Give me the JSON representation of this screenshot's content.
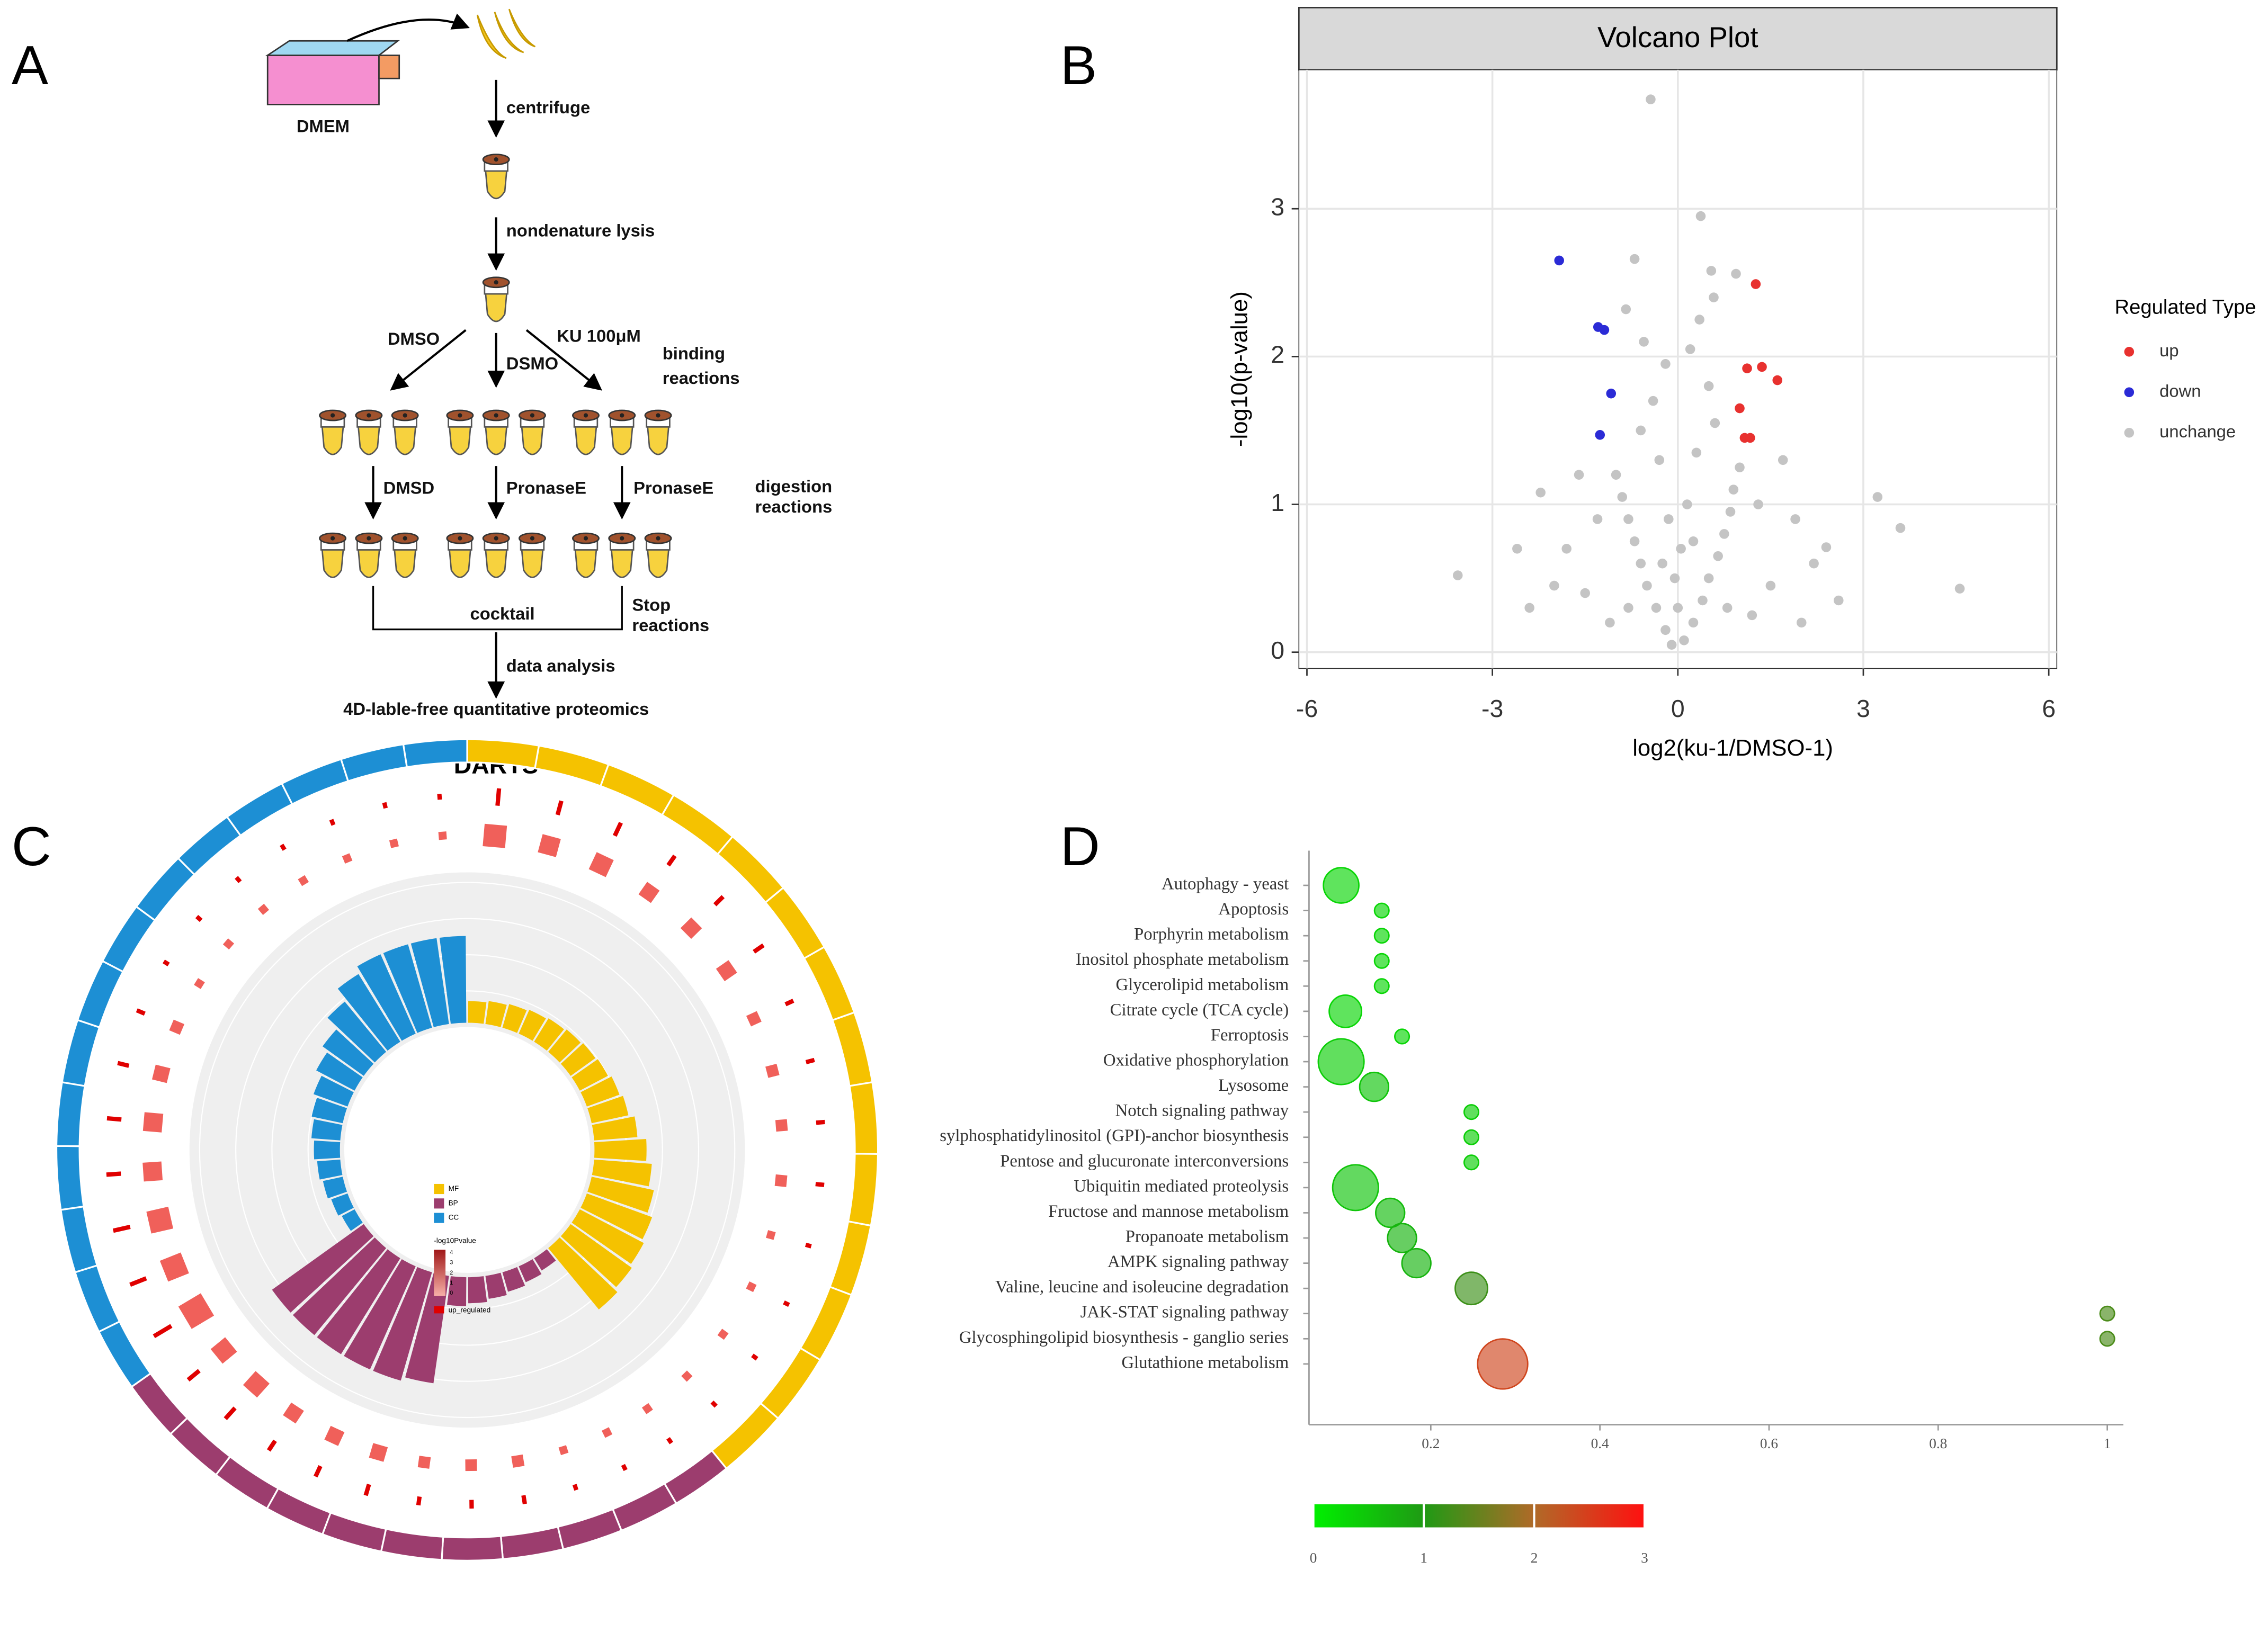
{
  "panels": [
    "A",
    "B",
    "C",
    "D"
  ],
  "diagram": {
    "labels": [
      "DMEM",
      "centrifuge",
      "nondenature lysis",
      "DMSO",
      "DSMO",
      "KU  100μM",
      "binding",
      "reactions",
      "DMSD",
      "PronaseE",
      "PronaseE",
      "digestion",
      "reactions",
      "cocktail",
      "Stop",
      "reactions",
      "data analysis",
      "4D-lable-free quantitative proteomics"
    ]
  },
  "chart_data": [
    {
      "type": "scatter",
      "title": "Volcano Plot",
      "x_label": "log2(ku-1/DMSO-1)",
      "y_label": "-log10(p-value)",
      "legend_title": "Regulated Type",
      "xlim": [
        -6.13,
        6.13
      ],
      "ylim": [
        -0.11,
        3.94
      ],
      "xticks": [
        -6,
        -3,
        0,
        3,
        6
      ],
      "yticks": [
        0,
        1,
        2,
        3
      ],
      "grid": true,
      "series": [
        {
          "name": "up",
          "color": "#e8312f",
          "x": [
            1.26,
            1.36,
            1.12,
            1.61,
            1.0,
            1.08,
            1.17
          ],
          "values": [
            2.49,
            1.93,
            1.92,
            1.84,
            1.65,
            1.45,
            1.45
          ]
        },
        {
          "name": "down",
          "color": "#2b2bd6",
          "x": [
            -1.92,
            -1.29,
            -1.19,
            -1.08,
            -1.26
          ],
          "values": [
            2.65,
            2.2,
            2.18,
            1.75,
            1.47
          ]
        },
        {
          "name": "unchange",
          "color": "#c4c4c4",
          "x": [
            -0.44,
            0.37,
            -0.7,
            0.54,
            0.94,
            0.58,
            -0.84,
            3.23,
            3.6,
            4.56,
            -3.56,
            -2.22,
            2.4,
            -0.1,
            0.1,
            -0.2,
            0.25,
            -0.35,
            0.4,
            -0.5,
            0.5,
            -0.6,
            0.65,
            -0.7,
            0.75,
            -0.8,
            0.85,
            -0.9,
            0.9,
            -1.0,
            1.0,
            -0.3,
            0.3,
            -0.6,
            0.6,
            -0.4,
            0.5,
            -0.2,
            0.2,
            -0.55,
            0.35,
            -0.05,
            0.05,
            -0.15,
            0.15,
            -1.5,
            1.5,
            -1.8,
            1.9,
            -2.0,
            2.2,
            -1.3,
            1.3,
            -2.4,
            2.6,
            -1.1,
            1.2,
            0,
            -0.25,
            0.25,
            -2.6,
            1.7,
            -1.6,
            2.0,
            -0.8,
            0.8
          ],
          "values": [
            3.74,
            2.95,
            2.66,
            2.58,
            2.56,
            2.4,
            2.32,
            1.05,
            0.84,
            0.43,
            0.52,
            1.08,
            0.71,
            0.05,
            0.08,
            0.15,
            0.2,
            0.3,
            0.35,
            0.45,
            0.5,
            0.6,
            0.65,
            0.75,
            0.8,
            0.9,
            0.95,
            1.05,
            1.1,
            1.2,
            1.25,
            1.3,
            1.35,
            1.5,
            1.55,
            1.7,
            1.8,
            1.95,
            2.05,
            2.1,
            2.25,
            0.5,
            0.7,
            0.9,
            1.0,
            0.4,
            0.45,
            0.7,
            0.9,
            0.45,
            0.6,
            0.9,
            1.0,
            0.3,
            0.35,
            0.2,
            0.25,
            0.3,
            0.6,
            0.75,
            0.7,
            1.3,
            1.2,
            0.2,
            0.3,
            0.3
          ]
        }
      ]
    },
    {
      "type": "circos",
      "title": "DARTS",
      "ylim": [
        0,
        100
      ],
      "scale_title": "-log10Pvalue",
      "scale_ticks": [
        4,
        3,
        2,
        1,
        0
      ],
      "up_label": "up_regulated",
      "series": [
        {
          "name": "MF",
          "color": "#f5c200",
          "values": [
            15,
            16,
            17,
            18,
            19,
            20,
            21,
            22,
            24,
            26,
            30,
            36,
            40,
            44,
            48,
            50,
            52,
            55
          ],
          "up_values": [
            5,
            4,
            4,
            3,
            3,
            3,
            2,
            2,
            2,
            2,
            1,
            1,
            1,
            1
          ]
        },
        {
          "name": "BP",
          "color": "#9c3d6e",
          "values": [
            10,
            12,
            14,
            16,
            18,
            20,
            75,
            78,
            78,
            78,
            78,
            78
          ],
          "up_values": [
            1,
            1,
            1,
            2,
            2,
            2,
            3,
            3,
            3,
            4,
            4
          ]
        },
        {
          "name": "CC",
          "color": "#1d8fd4",
          "values": [
            10,
            12,
            14,
            16,
            18,
            20,
            22,
            25,
            30,
            35,
            45,
            55,
            60,
            60,
            60,
            60
          ],
          "up_values": [
            6,
            5,
            5,
            4,
            4,
            3,
            2,
            1,
            1,
            1,
            1,
            1,
            1,
            1
          ]
        }
      ]
    },
    {
      "type": "bubble",
      "categories": [
        "Autophagy - yeast",
        "Apoptosis",
        "Porphyrin metabolism",
        "Inositol phosphate metabolism",
        "Glycerolipid metabolism",
        "Citrate cycle (TCA cycle)",
        "Ferroptosis",
        "Oxidative phosphorylation",
        "Lysosome",
        "Notch signaling pathway",
        "sylphosphatidylinositol (GPI)-anchor biosynthesis",
        "Pentose and glucuronate interconversions",
        "Ubiquitin mediated proteolysis",
        "Fructose and mannose metabolism",
        "Propanoate metabolism",
        "AMPK signaling pathway",
        "Valine, leucine and isoleucine degradation",
        "JAK-STAT signaling pathway",
        "Glycosphingolipid biosynthesis - ganglio series",
        "Glutathione metabolism"
      ],
      "values": [
        0.094,
        0.142,
        0.142,
        0.142,
        0.142,
        0.099,
        0.166,
        0.094,
        0.133,
        0.248,
        0.248,
        0.248,
        0.111,
        0.152,
        0.166,
        0.183,
        0.248,
        1.0,
        1.0,
        0.285
      ],
      "sizes": [
        6,
        1,
        1,
        1,
        1,
        5,
        1,
        10,
        4,
        1,
        1,
        1,
        10,
        4,
        4,
        4,
        5,
        1,
        1,
        12
      ],
      "color_values": [
        0.3,
        0.3,
        0.3,
        0.3,
        0.3,
        0.3,
        0.3,
        0.4,
        0.5,
        0.4,
        0.4,
        0.4,
        0.5,
        0.6,
        0.7,
        0.7,
        1.2,
        1.3,
        1.3,
        2.4
      ],
      "xlim": [
        0.056,
        1.019
      ],
      "xticks": [
        0.2,
        0.4,
        0.6,
        0.8,
        1
      ],
      "clim": [
        0,
        3
      ],
      "cticks": [
        0,
        1,
        2,
        3
      ],
      "colorscale": [
        "#00f000",
        "#1f9a14",
        "#b06a28",
        "#ff1010"
      ]
    }
  ]
}
